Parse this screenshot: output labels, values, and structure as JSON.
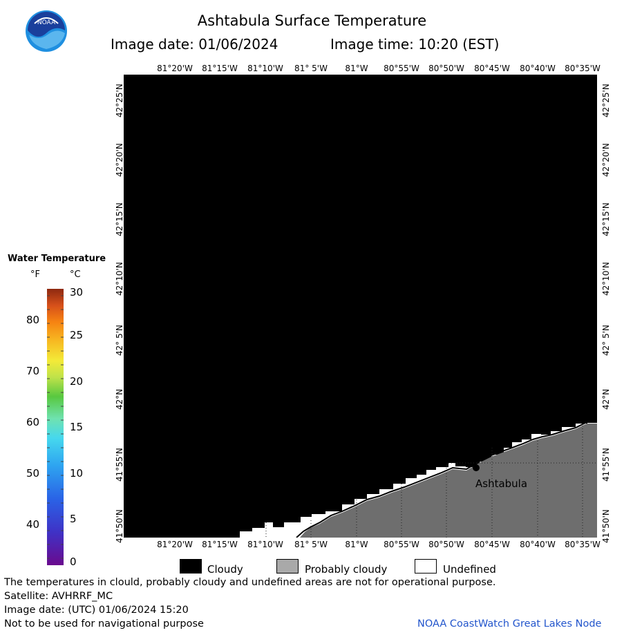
{
  "header": {
    "title": "Ashtabula Surface Temperature",
    "image_date_label": "Image date: 01/06/2024",
    "image_time_label": "Image time: 10:20 (EST)"
  },
  "logo": {
    "text": "NOAA"
  },
  "map": {
    "lon_labels": [
      "81°20'W",
      "81°15'W",
      "81°10'W",
      "81° 5'W",
      "81°W",
      "80°55'W",
      "80°50'W",
      "80°45'W",
      "80°40'W",
      "80°35'W"
    ],
    "lat_labels": [
      "42°25'N",
      "42°20'N",
      "42°15'N",
      "42°10'N",
      "42° 5'N",
      "42°N",
      "41°55'N",
      "41°50'N"
    ],
    "city_label": "Ashtabula",
    "colors": {
      "cloud": "#000000",
      "land": "#6e6e6e",
      "undefined": "#ffffff"
    }
  },
  "legend": {
    "title": "Water Temperature",
    "unit_f": "°F",
    "unit_c": "°C",
    "f_ticks": [
      "80",
      "70",
      "60",
      "50",
      "40"
    ],
    "c_ticks": [
      "30",
      "25",
      "20",
      "15",
      "10",
      "5",
      "0"
    ]
  },
  "key": {
    "cloudy": "Cloudy",
    "probably_cloudy": "Probably cloudy",
    "undefined": "Undefined"
  },
  "footer": {
    "note": "The temperatures in clould, probably cloudy and undefined areas are not for operational purpose.",
    "satellite": "Satellite: AVHRRF_MC",
    "image_date_utc": "Image date: (UTC) 01/06/2024  15:20",
    "nav_warning": "Not to be used for navigational purpose",
    "credit": "NOAA CoastWatch Great Lakes Node"
  }
}
